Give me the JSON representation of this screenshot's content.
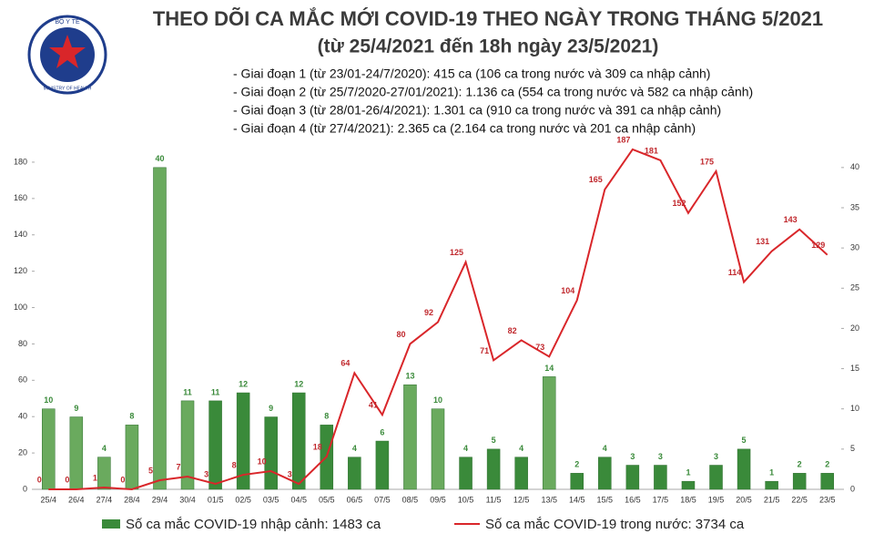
{
  "logo": {
    "top": "BỘ Y TẾ",
    "bottom": "MINISTRY OF HEALTH"
  },
  "chart_data": {
    "type": "bar_line",
    "title": "THEO DÕI CA MẮC MỚI COVID-19 THEO NGÀY TRONG THÁNG 5/2021",
    "subtitle": "(từ 25/4/2021 đến 18h ngày 23/5/2021)",
    "notes": [
      "- Giai đoạn 1 (từ 23/01-24/7/2020): 415 ca (106 ca trong nước và 309 ca nhập cảnh)",
      "- Giai đoạn 2 (từ 25/7/2020-27/01/2021): 1.136 ca (554 ca trong nước và 582 ca nhập cảnh)",
      "- Giai đoạn 3 (từ 28/01-26/4/2021): 1.301 ca (910 ca trong nước và 391 ca nhập cảnh)",
      "- Giai đoạn 4 (từ 27/4/2021): 2.365 ca (2.164 ca trong nước và 201 ca nhập cảnh)"
    ],
    "categories": [
      "25/4",
      "26/4",
      "27/4",
      "28/4",
      "29/4",
      "30/4",
      "01/5",
      "02/5",
      "03/5",
      "04/5",
      "05/5",
      "06/5",
      "07/5",
      "08/5",
      "09/5",
      "10/5",
      "11/5",
      "12/5",
      "13/5",
      "14/5",
      "15/5",
      "16/5",
      "17/5",
      "18/5",
      "19/5",
      "20/5",
      "21/5",
      "22/5",
      "23/5"
    ],
    "series": [
      {
        "name": "Số ca mắc COVID-19 nhập cảnh: 1483 ca",
        "type": "bar",
        "axis": "y2",
        "color": "#3a8a3a",
        "label_color": "#3a8a3a",
        "colors": [
          "#6aaa5e",
          "#6aaa5e",
          "#6aaa5e",
          "#6aaa5e",
          "#6aaa5e",
          "#6aaa5e",
          "#3a8a3a",
          "#3a8a3a",
          "#3a8a3a",
          "#3a8a3a",
          "#3a8a3a",
          "#3a8a3a",
          "#3a8a3a",
          "#6aaa5e",
          "#6aaa5e",
          "#3a8a3a",
          "#3a8a3a",
          "#3a8a3a",
          "#6aaa5e",
          "#3a8a3a",
          "#3a8a3a",
          "#3a8a3a",
          "#3a8a3a",
          "#3a8a3a",
          "#3a8a3a",
          "#3a8a3a",
          "#3a8a3a",
          "#3a8a3a",
          "#3a8a3a"
        ],
        "values": [
          10,
          9,
          4,
          8,
          40,
          11,
          11,
          12,
          9,
          12,
          8,
          4,
          6,
          13,
          10,
          4,
          5,
          4,
          14,
          2,
          4,
          3,
          3,
          1,
          3,
          5,
          1,
          2,
          2
        ]
      },
      {
        "name": "Số ca mắc COVID-19 trong nước: 3734 ca",
        "type": "line",
        "axis": "y",
        "color": "#d9262a",
        "label_color": "#c0282d",
        "values": [
          0,
          0,
          1,
          0,
          5,
          7,
          3,
          8,
          10,
          3,
          18,
          64,
          41,
          80,
          92,
          125,
          71,
          82,
          73,
          104,
          165,
          187,
          181,
          152,
          175,
          114,
          131,
          143,
          129
        ]
      }
    ],
    "ylim": [
      0,
      189
    ],
    "yticks": [
      0,
      20,
      40,
      60,
      80,
      100,
      120,
      140,
      160,
      180
    ],
    "y2lim": [
      0,
      42.7
    ],
    "y2ticks": [
      0,
      5,
      10,
      15,
      20,
      25,
      30,
      35,
      40
    ]
  }
}
